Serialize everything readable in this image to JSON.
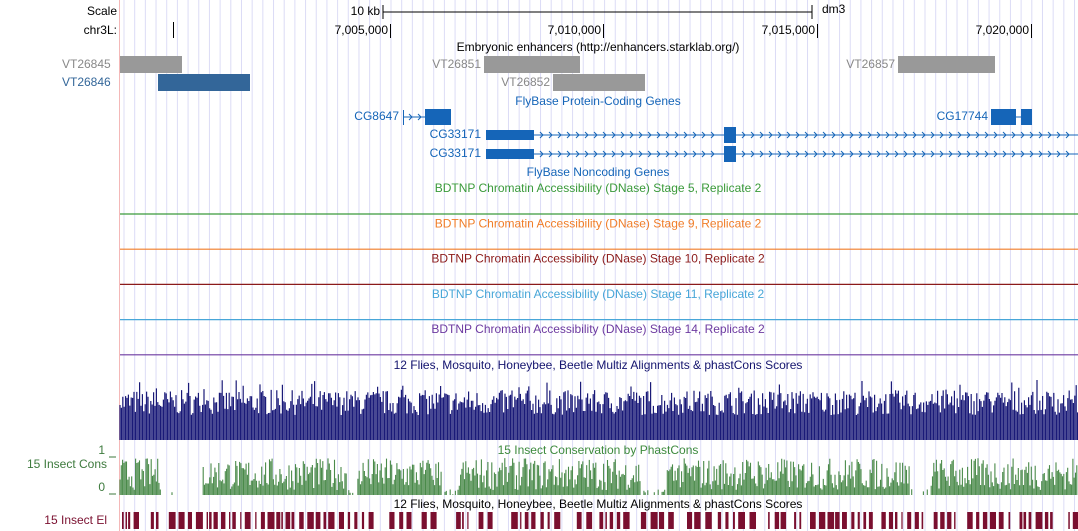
{
  "ruler": {
    "scale_label": "Scale",
    "span": "10 kb",
    "assembly": "dm3",
    "chrom": "chr3L:",
    "ticks": [
      "7,005,000",
      "7,010,000",
      "7,015,000",
      "7,020,000"
    ]
  },
  "enhancers": {
    "title": "Embryonic enhancers (http://enhancers.starklab.org/)",
    "items": [
      "VT26845",
      "VT26846",
      "VT26851",
      "VT26852",
      "VT26857"
    ]
  },
  "coding_genes": {
    "title": "FlyBase Protein-Coding Genes",
    "items": [
      "CG8647",
      "CG33171",
      "CG33171",
      "CG17744"
    ]
  },
  "noncoding_genes": {
    "title": "FlyBase Noncoding Genes"
  },
  "dnase": {
    "tracks": [
      "BDTNP Chromatin Accessibility (DNase) Stage 5, Replicate 2",
      "BDTNP Chromatin Accessibility (DNase) Stage 9, Replicate 2",
      "BDTNP Chromatin Accessibility (DNase) Stage 10, Replicate 2",
      "BDTNP Chromatin Accessibility (DNase) Stage 11, Replicate 2",
      "BDTNP Chromatin Accessibility (DNase) Stage 14, Replicate 2"
    ]
  },
  "multiz": {
    "title": "12 Flies, Mosquito, Honeybee, Beetle Multiz Alignments & phastCons Scores"
  },
  "phastcons": {
    "title": "15 Insect Conservation by PhastCons",
    "label": "15 Insect Cons",
    "max_label": "1",
    "min_label": "0"
  },
  "elements": {
    "title": "12 Flies, Mosquito, Honeybee, Beetle Multiz Alignments & phastCons Scores",
    "label": "15 Insect El"
  }
}
